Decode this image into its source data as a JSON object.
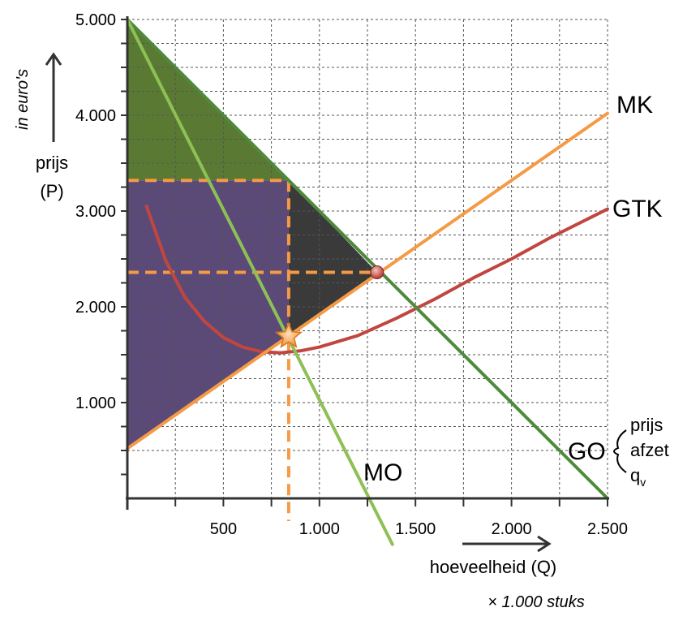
{
  "chart_data": {
    "type": "line",
    "x_label": "hoeveelheid (Q)",
    "x_unit_note": "× 1.000 stuks",
    "y_label_line1": "prijs",
    "y_label_line2": "(P)",
    "y_unit_note": "in euro's",
    "xlim": [
      0,
      2500
    ],
    "ylim": [
      0,
      5000
    ],
    "x_ticks": [
      500,
      1000,
      1500,
      2000,
      2500
    ],
    "x_tick_labels": [
      "500",
      "1.000",
      "1.500",
      "2.000",
      "2.500"
    ],
    "y_ticks": [
      1000,
      2000,
      3000,
      4000,
      5000
    ],
    "y_tick_labels": [
      "1.000",
      "2.000",
      "3.000",
      "4.000",
      "5.000"
    ],
    "grid": true,
    "series": [
      {
        "name": "GO",
        "color": "#4f8a3c",
        "points": [
          [
            0,
            5000
          ],
          [
            2500,
            0
          ]
        ]
      },
      {
        "name": "MO",
        "color": "#8dc055",
        "points": [
          [
            0,
            5000
          ],
          [
            1380,
            -480
          ]
        ]
      },
      {
        "name": "MK",
        "color": "#f59a45",
        "points": [
          [
            0,
            520
          ],
          [
            2500,
            4020
          ]
        ]
      },
      {
        "name": "GTK",
        "color": "#c1463f",
        "points": [
          [
            100,
            3050
          ],
          [
            200,
            2480
          ],
          [
            300,
            2100
          ],
          [
            400,
            1850
          ],
          [
            500,
            1680
          ],
          [
            600,
            1580
          ],
          [
            700,
            1530
          ],
          [
            800,
            1520
          ],
          [
            900,
            1540
          ],
          [
            1000,
            1580
          ],
          [
            1200,
            1700
          ],
          [
            1400,
            1880
          ],
          [
            1600,
            2080
          ],
          [
            1800,
            2300
          ],
          [
            2000,
            2500
          ],
          [
            2200,
            2720
          ],
          [
            2500,
            3020
          ]
        ]
      }
    ],
    "labels": {
      "mk": "MK",
      "gtk": "GTK",
      "mo": "MO",
      "go": "GO"
    },
    "go_brace_items": [
      "prijs",
      "afzet",
      "q"
    ],
    "go_brace_subscript": "v",
    "profit_max": {
      "q": 840,
      "price": 3320,
      "mc": 1700
    },
    "intersection": {
      "q": 1300,
      "price": 2360
    },
    "shaded_areas": [
      {
        "name": "consumer-surplus",
        "color": "#5a7a33"
      },
      {
        "name": "producer-surplus",
        "color": "#5b4a78"
      },
      {
        "name": "welfare-loss",
        "color": "#3a3a3a"
      }
    ]
  }
}
